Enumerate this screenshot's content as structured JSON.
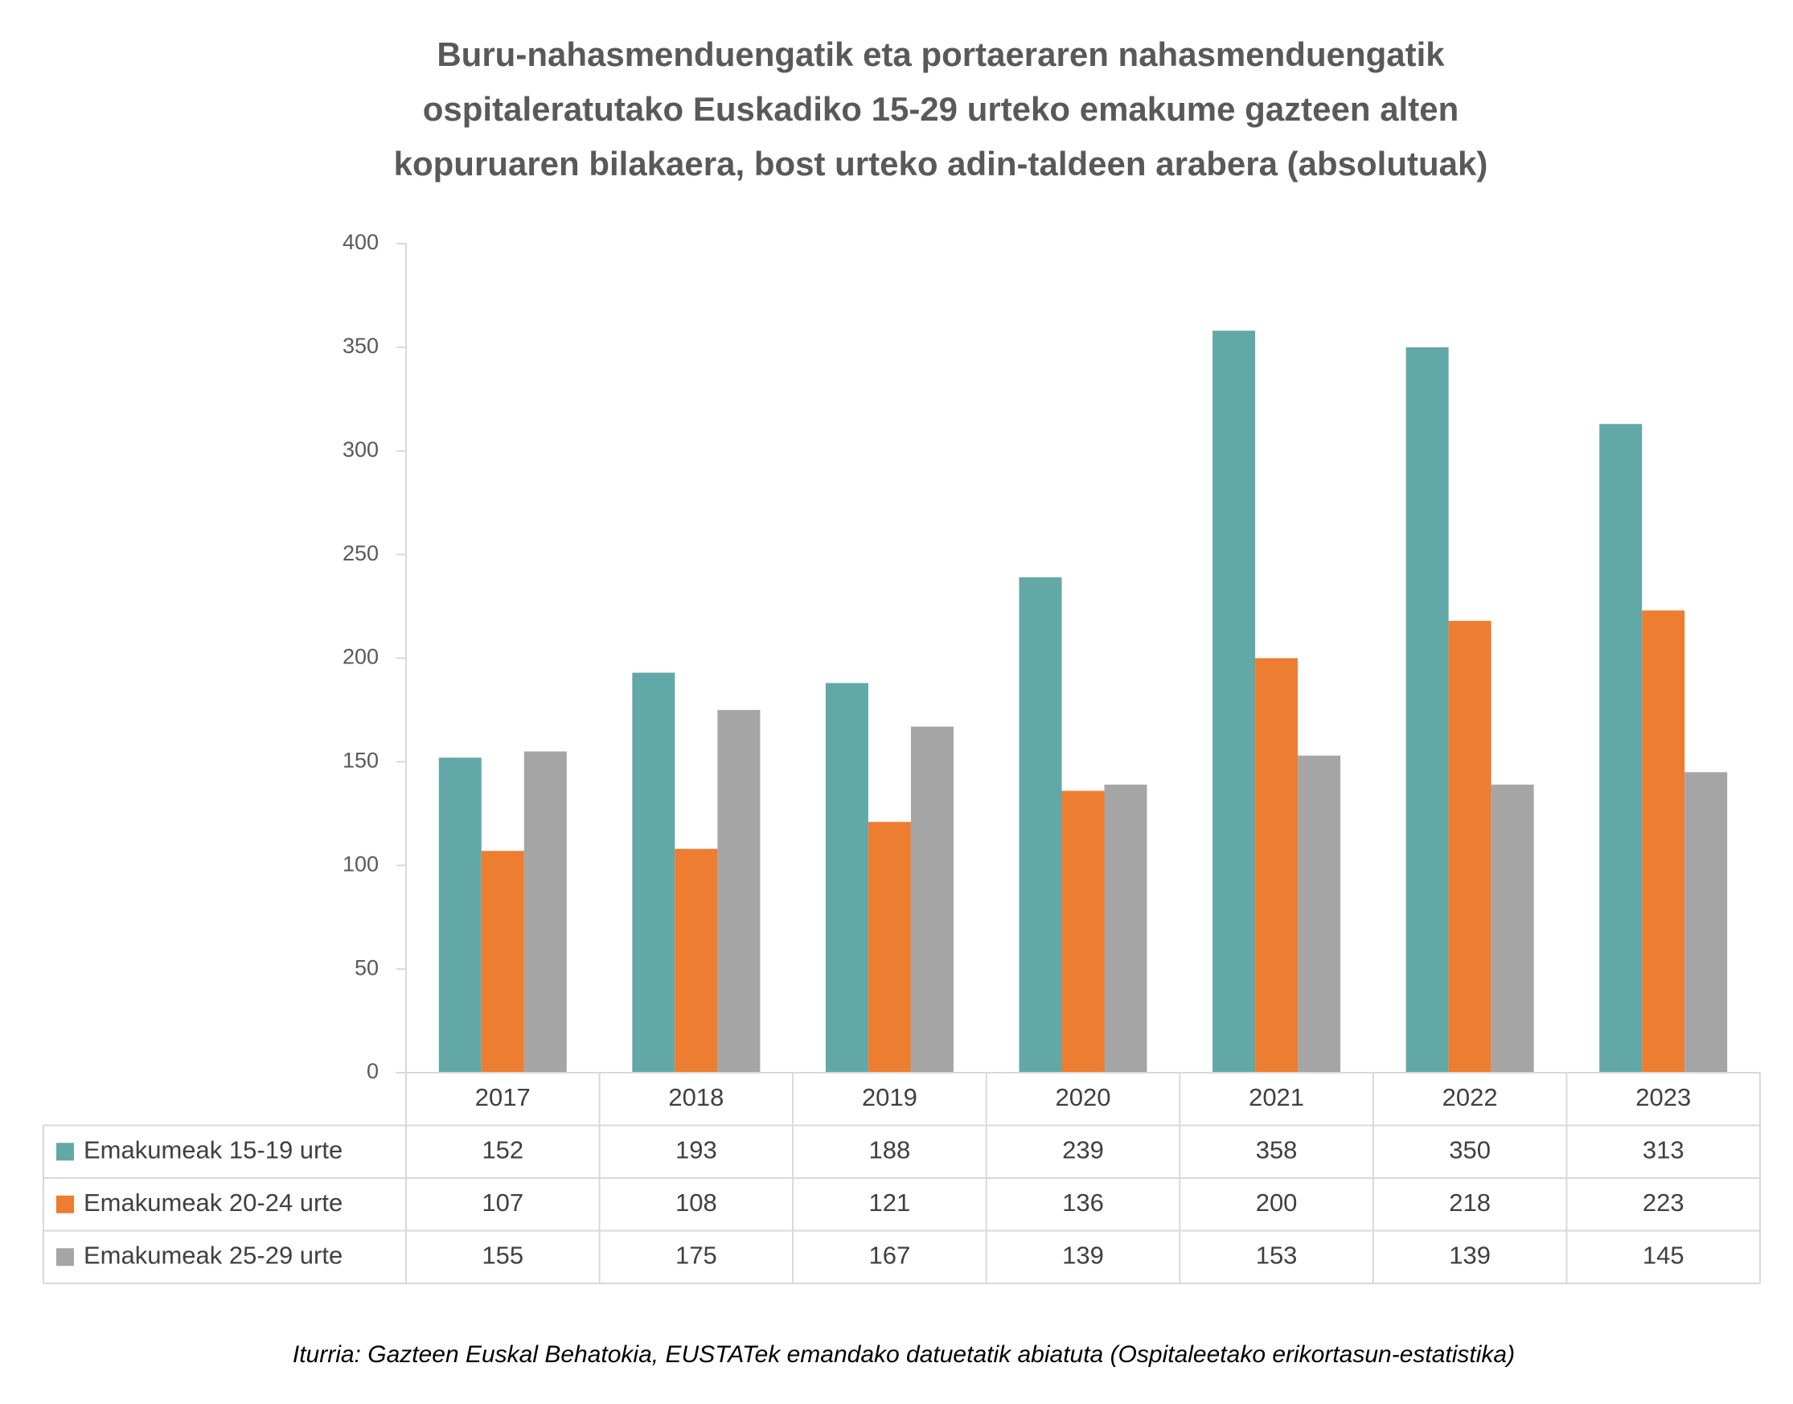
{
  "chart_data": {
    "type": "bar",
    "title": [
      "Buru-nahasmenduengatik eta portaeraren nahasmenduengatik",
      "ospitaleratutako Euskadiko 15-29 urteko emakume gazteen alten",
      "kopuruaren bilakaera, bost urteko adin-taldeen arabera (absolutuak)"
    ],
    "categories": [
      "2017",
      "2018",
      "2019",
      "2020",
      "2021",
      "2022",
      "2023"
    ],
    "series": [
      {
        "name": "Emakumeak 15-19 urte",
        "color": "#62a8a6",
        "values": [
          152,
          193,
          188,
          239,
          358,
          350,
          313
        ]
      },
      {
        "name": "Emakumeak 20-24 urte",
        "color": "#ed7d31",
        "values": [
          107,
          108,
          121,
          136,
          200,
          218,
          223
        ]
      },
      {
        "name": "Emakumeak 25-29 urte",
        "color": "#a5a5a5",
        "values": [
          155,
          175,
          167,
          139,
          153,
          139,
          145
        ]
      }
    ],
    "ylim": [
      0,
      400
    ],
    "yticks": [
      0,
      50,
      100,
      150,
      200,
      250,
      300,
      350,
      400
    ],
    "grid": false,
    "source": "Iturria: Gazteen Euskal Behatokia, EUSTATek emandako datuetatik abiatuta (Ospitaleetako erikortasun-estatistika)"
  }
}
